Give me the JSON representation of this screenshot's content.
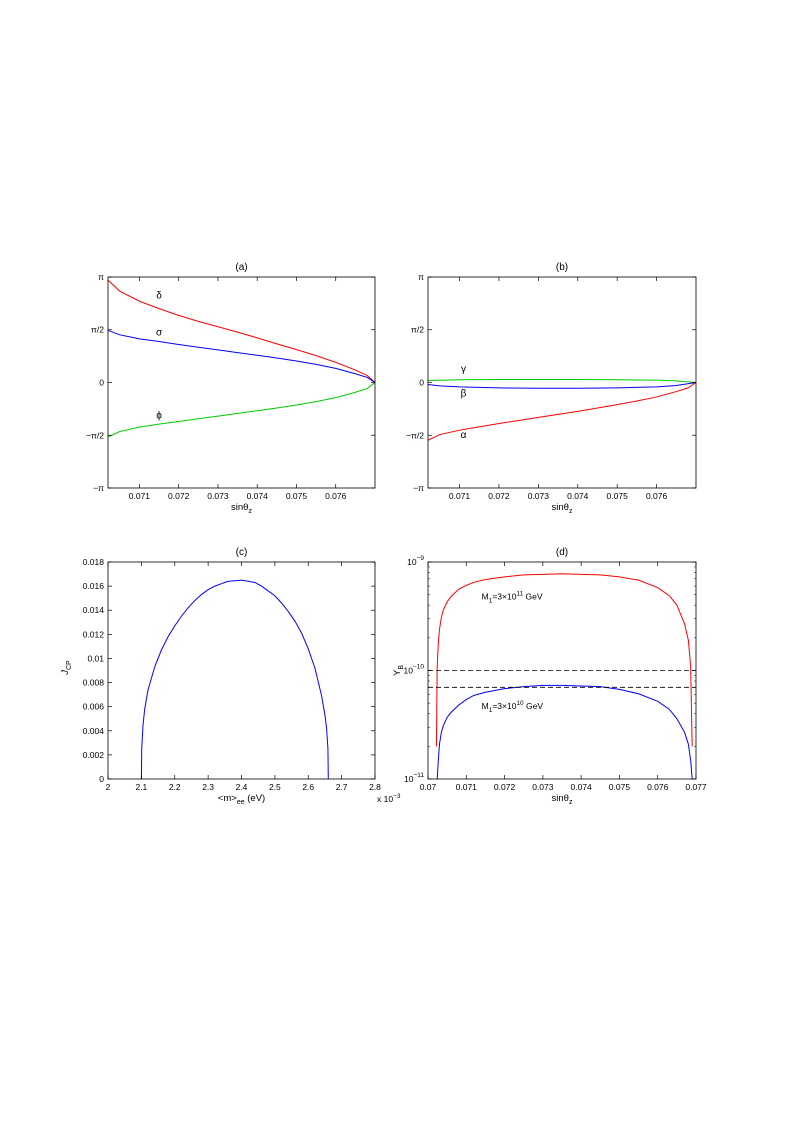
{
  "chart_data": [
    {
      "id": "a",
      "type": "line",
      "title": "(a)",
      "xlabel": "sinθ",
      "xlabel_sub": "z",
      "ylabel": "",
      "xlim": [
        0.0702,
        0.077
      ],
      "ylim": [
        -3.14159,
        3.14159
      ],
      "grid": false,
      "xticks": [
        {
          "v": 0.071,
          "label": "0.071"
        },
        {
          "v": 0.072,
          "label": "0.072"
        },
        {
          "v": 0.073,
          "label": "0.073"
        },
        {
          "v": 0.074,
          "label": "0.074"
        },
        {
          "v": 0.075,
          "label": "0.075"
        },
        {
          "v": 0.076,
          "label": "0.076"
        }
      ],
      "yticks": [
        {
          "v": 3.14159,
          "label": "π"
        },
        {
          "v": 1.5708,
          "label": "π/2"
        },
        {
          "v": 0,
          "label": "0"
        },
        {
          "v": -1.5708,
          "label": "−π/2"
        },
        {
          "v": -3.14159,
          "label": "−π"
        }
      ],
      "series": [
        {
          "name": "δ",
          "color": "#ff0000",
          "x": [
            0.0702,
            0.0705,
            0.071,
            0.0715,
            0.072,
            0.0725,
            0.073,
            0.0735,
            0.074,
            0.0745,
            0.075,
            0.0755,
            0.076,
            0.0765,
            0.0768,
            0.077
          ],
          "y": [
            3.05,
            2.72,
            2.42,
            2.2,
            2.0,
            1.82,
            1.66,
            1.5,
            1.33,
            1.15,
            0.98,
            0.8,
            0.6,
            0.37,
            0.21,
            0.0
          ]
        },
        {
          "name": "σ",
          "color": "#0000ff",
          "x": [
            0.0702,
            0.0705,
            0.071,
            0.0715,
            0.072,
            0.0725,
            0.073,
            0.0735,
            0.074,
            0.0745,
            0.075,
            0.0755,
            0.076,
            0.0765,
            0.0768,
            0.077
          ],
          "y": [
            1.55,
            1.42,
            1.3,
            1.22,
            1.13,
            1.05,
            0.97,
            0.89,
            0.81,
            0.73,
            0.64,
            0.54,
            0.42,
            0.26,
            0.15,
            0.0
          ]
        },
        {
          "name": "ϕ",
          "color": "#00cc00",
          "x": [
            0.0702,
            0.0705,
            0.071,
            0.0715,
            0.072,
            0.0725,
            0.073,
            0.0735,
            0.074,
            0.0745,
            0.075,
            0.0755,
            0.076,
            0.0765,
            0.0768,
            0.077
          ],
          "y": [
            -1.62,
            -1.46,
            -1.33,
            -1.24,
            -1.16,
            -1.08,
            -1.0,
            -0.92,
            -0.84,
            -0.76,
            -0.67,
            -0.57,
            -0.45,
            -0.29,
            -0.18,
            0.0
          ]
        }
      ],
      "annotations": [
        {
          "text": "δ",
          "x": 0.0715,
          "y": 2.5
        },
        {
          "text": "σ",
          "x": 0.0715,
          "y": 1.4
        },
        {
          "text": "ϕ",
          "x": 0.0715,
          "y": -1.07
        }
      ]
    },
    {
      "id": "b",
      "type": "line",
      "title": "(b)",
      "xlabel": "sinθ",
      "xlabel_sub": "z",
      "ylabel": "",
      "xlim": [
        0.0702,
        0.077
      ],
      "ylim": [
        -3.14159,
        3.14159
      ],
      "grid": false,
      "xticks": [
        {
          "v": 0.071,
          "label": "0.071"
        },
        {
          "v": 0.072,
          "label": "0.072"
        },
        {
          "v": 0.073,
          "label": "0.073"
        },
        {
          "v": 0.074,
          "label": "0.074"
        },
        {
          "v": 0.075,
          "label": "0.075"
        },
        {
          "v": 0.076,
          "label": "0.076"
        }
      ],
      "yticks": [
        {
          "v": 3.14159,
          "label": "π"
        },
        {
          "v": 1.5708,
          "label": "π/2"
        },
        {
          "v": 0,
          "label": "0"
        },
        {
          "v": -1.5708,
          "label": "−π/2"
        },
        {
          "v": -3.14159,
          "label": "−π"
        }
      ],
      "series": [
        {
          "name": "γ",
          "color": "#00cc00",
          "x": [
            0.0702,
            0.071,
            0.072,
            0.073,
            0.074,
            0.075,
            0.076,
            0.0765,
            0.077
          ],
          "y": [
            0.06,
            0.08,
            0.09,
            0.09,
            0.09,
            0.08,
            0.07,
            0.05,
            0.0
          ]
        },
        {
          "name": "β",
          "color": "#0000ff",
          "x": [
            0.0702,
            0.0705,
            0.071,
            0.072,
            0.073,
            0.074,
            0.075,
            0.076,
            0.0765,
            0.077
          ],
          "y": [
            -0.06,
            -0.1,
            -0.13,
            -0.16,
            -0.17,
            -0.17,
            -0.16,
            -0.13,
            -0.09,
            0.0
          ]
        },
        {
          "name": "α",
          "color": "#ff0000",
          "x": [
            0.0702,
            0.0705,
            0.071,
            0.0715,
            0.072,
            0.0725,
            0.073,
            0.0735,
            0.074,
            0.0745,
            0.075,
            0.0755,
            0.076,
            0.0765,
            0.0768,
            0.077
          ],
          "y": [
            -1.72,
            -1.55,
            -1.42,
            -1.32,
            -1.22,
            -1.13,
            -1.04,
            -0.95,
            -0.86,
            -0.76,
            -0.66,
            -0.55,
            -0.43,
            -0.27,
            -0.16,
            0.0
          ]
        }
      ],
      "annotations": [
        {
          "text": "γ",
          "x": 0.0711,
          "y": 0.32
        },
        {
          "text": "β",
          "x": 0.0711,
          "y": -0.42
        },
        {
          "text": "α",
          "x": 0.0711,
          "y": -1.65
        }
      ]
    },
    {
      "id": "c",
      "type": "line",
      "title": "(c)",
      "xlabel": "<m>",
      "xlabel_sub": "ee",
      "xlabel_suffix": "(eV)",
      "ylabel": "J",
      "ylabel_sub": "CP",
      "x_multiplier": "x 10",
      "x_multiplier_exp": "−3",
      "xlim": [
        2.0,
        2.8
      ],
      "ylim": [
        0,
        0.018
      ],
      "grid": false,
      "xticks": [
        {
          "v": 2.0,
          "label": "2"
        },
        {
          "v": 2.1,
          "label": "2.1"
        },
        {
          "v": 2.2,
          "label": "2.2"
        },
        {
          "v": 2.3,
          "label": "2.3"
        },
        {
          "v": 2.4,
          "label": "2.4"
        },
        {
          "v": 2.5,
          "label": "2.5"
        },
        {
          "v": 2.6,
          "label": "2.6"
        },
        {
          "v": 2.7,
          "label": "2.7"
        },
        {
          "v": 2.8,
          "label": "2.8"
        }
      ],
      "yticks": [
        {
          "v": 0,
          "label": "0"
        },
        {
          "v": 0.002,
          "label": "0.002"
        },
        {
          "v": 0.004,
          "label": "0.004"
        },
        {
          "v": 0.006,
          "label": "0.006"
        },
        {
          "v": 0.008,
          "label": "0.008"
        },
        {
          "v": 0.01,
          "label": "0.01"
        },
        {
          "v": 0.012,
          "label": "0.012"
        },
        {
          "v": 0.014,
          "label": "0.014"
        },
        {
          "v": 0.016,
          "label": "0.016"
        },
        {
          "v": 0.018,
          "label": "0.018"
        }
      ],
      "series": [
        {
          "name": "",
          "color": "#0000ff",
          "x": [
            2.1,
            2.101,
            2.105,
            2.11,
            2.12,
            2.14,
            2.16,
            2.18,
            2.2,
            2.22,
            2.24,
            2.26,
            2.28,
            2.3,
            2.32,
            2.34,
            2.36,
            2.38,
            2.4,
            2.42,
            2.44,
            2.46,
            2.48,
            2.5,
            2.52,
            2.54,
            2.56,
            2.58,
            2.6,
            2.62,
            2.64,
            2.65,
            2.655,
            2.659,
            2.66
          ],
          "y": [
            0,
            0.0025,
            0.0045,
            0.0058,
            0.0074,
            0.0093,
            0.0107,
            0.0118,
            0.0127,
            0.0135,
            0.0142,
            0.0148,
            0.0153,
            0.0157,
            0.016,
            0.0162,
            0.0164,
            0.01645,
            0.0165,
            0.0164,
            0.0163,
            0.016,
            0.0156,
            0.0152,
            0.0146,
            0.0139,
            0.0131,
            0.0121,
            0.0108,
            0.0092,
            0.0069,
            0.0053,
            0.0042,
            0.0025,
            0
          ]
        }
      ],
      "annotations": []
    },
    {
      "id": "d",
      "type": "line",
      "title": "(d)",
      "xlabel": "sinθ",
      "xlabel_sub": "z",
      "ylabel": "Y",
      "ylabel_sub": "B",
      "xlim": [
        0.07,
        0.077
      ],
      "ylim": [
        1e-11,
        1e-09
      ],
      "yscale": "log",
      "grid": false,
      "xticks": [
        {
          "v": 0.07,
          "label": "0.07"
        },
        {
          "v": 0.071,
          "label": "0.071"
        },
        {
          "v": 0.072,
          "label": "0.072"
        },
        {
          "v": 0.073,
          "label": "0.073"
        },
        {
          "v": 0.074,
          "label": "0.074"
        },
        {
          "v": 0.075,
          "label": "0.075"
        },
        {
          "v": 0.076,
          "label": "0.076"
        },
        {
          "v": 0.077,
          "label": "0.077"
        }
      ],
      "yticks": [
        {
          "v": 1e-11,
          "base": "10",
          "exp": "−11"
        },
        {
          "v": 1e-10,
          "base": "10",
          "exp": "−10"
        },
        {
          "v": 1e-09,
          "base": "10",
          "exp": "−9"
        }
      ],
      "hlines": [
        {
          "y": 1e-10,
          "color": "#000000",
          "dash": "5,3"
        },
        {
          "y": 7e-11,
          "color": "#000000",
          "dash": "5,3"
        }
      ],
      "series": [
        {
          "name": "M₁=3×10¹¹ GeV",
          "color": "#ff0000",
          "x": [
            0.07022,
            0.07024,
            0.07027,
            0.0703,
            0.07035,
            0.0704,
            0.0705,
            0.0706,
            0.0708,
            0.071,
            0.0712,
            0.0715,
            0.072,
            0.0725,
            0.073,
            0.0735,
            0.074,
            0.0745,
            0.075,
            0.0755,
            0.076,
            0.0763,
            0.0765,
            0.0767,
            0.0768,
            0.07686,
            0.0769
          ],
          "y": [
            2e-11,
            1.1e-10,
            1.8e-10,
            2.4e-10,
            3.1e-10,
            3.6e-10,
            4.3e-10,
            4.8e-10,
            5.6e-10,
            6.1e-10,
            6.5e-10,
            6.9e-10,
            7.3e-10,
            7.6e-10,
            7.7e-10,
            7.8e-10,
            7.7e-10,
            7.6e-10,
            7.3e-10,
            6.8e-10,
            5.8e-10,
            4.9e-10,
            4e-10,
            2.7e-10,
            1.9e-10,
            1.1e-10,
            2e-11
          ]
        },
        {
          "name": "M₁=3×10¹⁰ GeV",
          "color": "#0000ff",
          "x": [
            0.07024,
            0.07027,
            0.0703,
            0.07035,
            0.0704,
            0.0705,
            0.0706,
            0.0708,
            0.071,
            0.0712,
            0.0715,
            0.072,
            0.0725,
            0.073,
            0.0735,
            0.074,
            0.0745,
            0.075,
            0.0755,
            0.076,
            0.0763,
            0.0765,
            0.0767,
            0.0768,
            0.07686,
            0.0769
          ],
          "y": [
            1e-11,
            1.5e-11,
            2.1e-11,
            2.7e-11,
            3.1e-11,
            3.7e-11,
            4.1e-11,
            4.8e-11,
            5.4e-11,
            5.9e-11,
            6.3e-11,
            6.8e-11,
            7.1e-11,
            7.3e-11,
            7.3e-11,
            7.2e-11,
            7.1e-11,
            6.7e-11,
            6.1e-11,
            5.2e-11,
            4.4e-11,
            3.6e-11,
            2.7e-11,
            2.1e-11,
            1.5e-11,
            1e-11
          ]
        }
      ],
      "annotations": [
        {
          "base": "M",
          "sub": "1",
          "mid": "=3×10",
          "sup": "11",
          "tail": " GeV",
          "x": 0.0714,
          "y": 4.5e-10
        },
        {
          "base": "M",
          "sub": "1",
          "mid": "=3×10",
          "sup": "10",
          "tail": " GeV",
          "x": 0.0714,
          "y": 4.4e-11
        }
      ]
    }
  ]
}
